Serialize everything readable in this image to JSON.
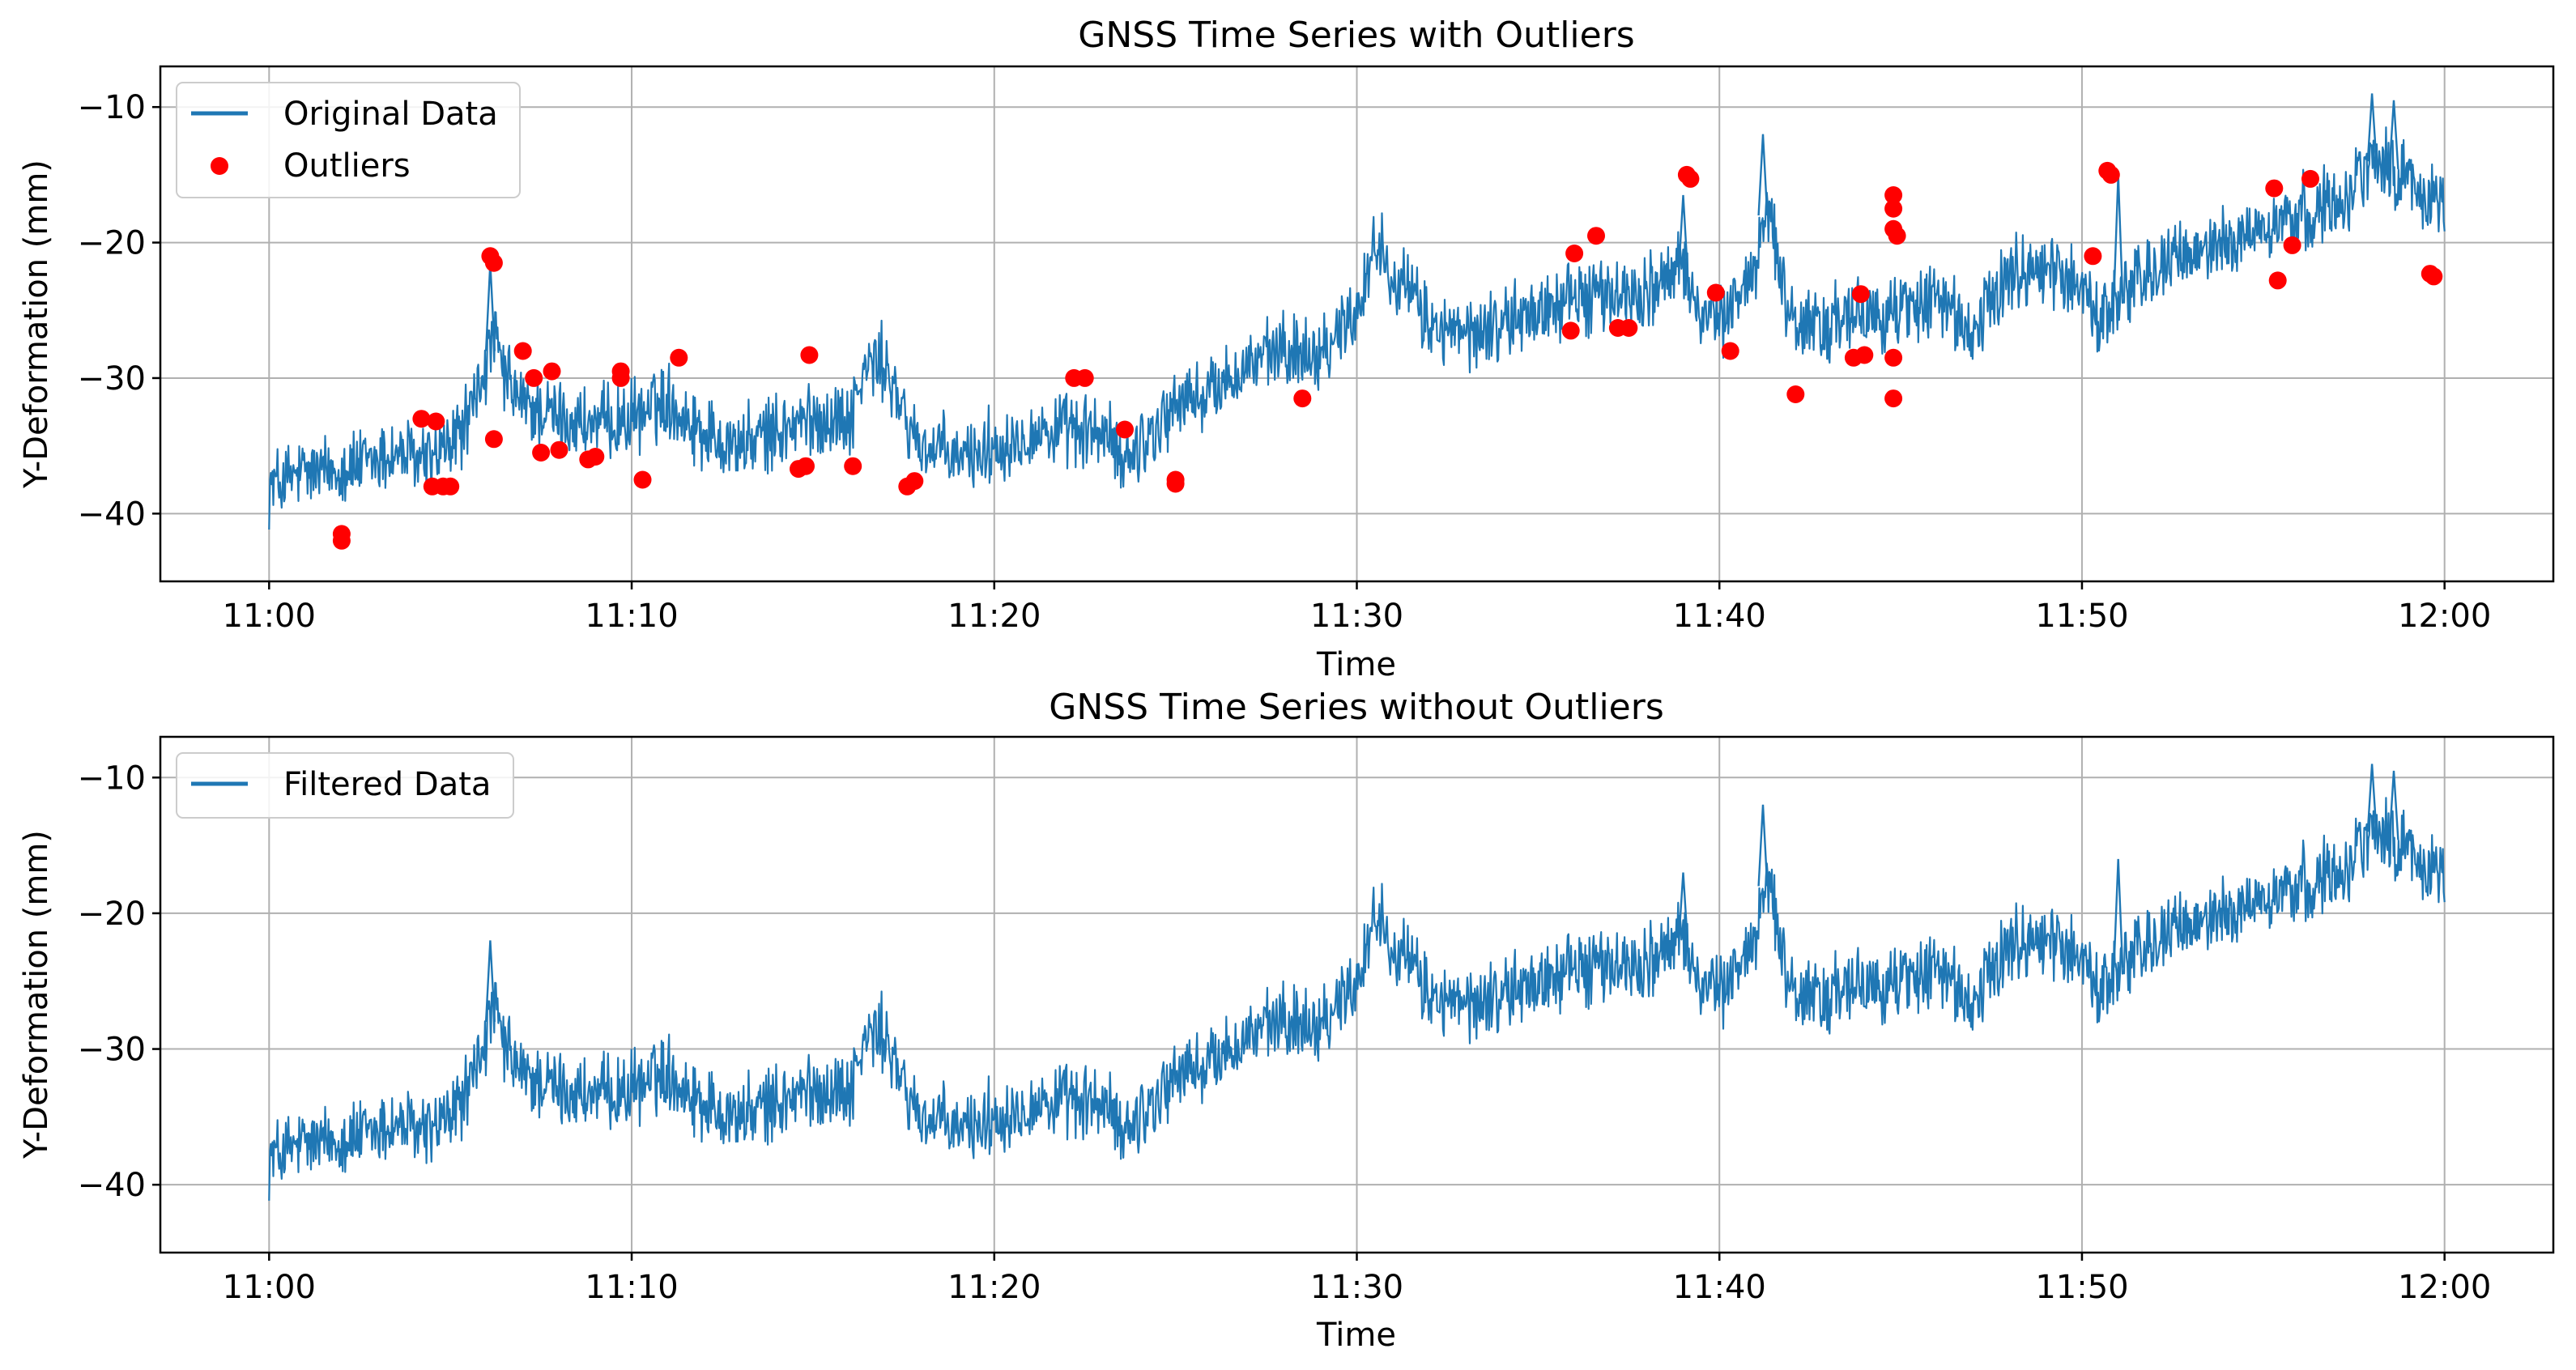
{
  "colors": {
    "series": "#1f77b4",
    "outlier": "#ff0000",
    "grid": "#b0b0b0",
    "axis": "#000000"
  },
  "chart_data": [
    {
      "type": "line",
      "title": "GNSS Time Series with  Outliers",
      "xlabel": "Time",
      "ylabel": "Y-Deformation (mm)",
      "xlim_minutes": [
        -3,
        63
      ],
      "ylim": [
        -45,
        -7
      ],
      "x_ticks": [
        {
          "label": "11:00",
          "value": 0
        },
        {
          "label": "11:10",
          "value": 10
        },
        {
          "label": "11:20",
          "value": 20
        },
        {
          "label": "11:30",
          "value": 30
        },
        {
          "label": "11:40",
          "value": 40
        },
        {
          "label": "11:50",
          "value": 50
        },
        {
          "label": "12:00",
          "value": 60
        }
      ],
      "y_ticks": [
        {
          "label": "−10",
          "value": -10
        },
        {
          "label": "−20",
          "value": -20
        },
        {
          "label": "−30",
          "value": -30
        },
        {
          "label": "−40",
          "value": -40
        }
      ],
      "grid": true,
      "legend_position": "top-left",
      "legend": [
        {
          "label": "Original Data",
          "kind": "line",
          "color": "#1f77b4"
        },
        {
          "label": "Outliers",
          "kind": "marker",
          "color": "#ff0000"
        }
      ],
      "series": [
        {
          "name": "Original Data",
          "color": "#1f77b4",
          "noise_mm": 2.2,
          "trend": [
            [
              0,
              -38
            ],
            [
              0.5,
              -37.5
            ],
            [
              1,
              -37
            ],
            [
              1.5,
              -37
            ],
            [
              2,
              -36.5
            ],
            [
              2.5,
              -36.5
            ],
            [
              3,
              -36
            ],
            [
              3.5,
              -35.5
            ],
            [
              4,
              -36
            ],
            [
              4.5,
              -36
            ],
            [
              5,
              -35
            ],
            [
              5.5,
              -33
            ],
            [
              6,
              -29
            ],
            [
              6.2,
              -27
            ],
            [
              6.5,
              -30
            ],
            [
              7,
              -32
            ],
            [
              8,
              -33
            ],
            [
              9,
              -33.5
            ],
            [
              10,
              -33
            ],
            [
              11,
              -31.5
            ],
            [
              11.5,
              -33
            ],
            [
              12,
              -34
            ],
            [
              13,
              -35
            ],
            [
              14,
              -34
            ],
            [
              15,
              -33
            ],
            [
              16,
              -33
            ],
            [
              16.5,
              -29
            ],
            [
              17,
              -29
            ],
            [
              17.5,
              -33
            ],
            [
              18,
              -35
            ],
            [
              19,
              -36
            ],
            [
              20,
              -35
            ],
            [
              21,
              -34
            ],
            [
              22,
              -34
            ],
            [
              23,
              -34
            ],
            [
              23.5,
              -36
            ],
            [
              24,
              -35
            ],
            [
              25,
              -32
            ],
            [
              26,
              -31
            ],
            [
              27,
              -29
            ],
            [
              28,
              -28
            ],
            [
              29,
              -28
            ],
            [
              30,
              -25
            ],
            [
              30.5,
              -20
            ],
            [
              31,
              -22
            ],
            [
              32,
              -26
            ],
            [
              33,
              -27
            ],
            [
              34,
              -26
            ],
            [
              35,
              -25
            ],
            [
              36,
              -24
            ],
            [
              37,
              -24
            ],
            [
              38,
              -23.5
            ],
            [
              39,
              -22
            ],
            [
              39.5,
              -25
            ],
            [
              40,
              -26
            ],
            [
              41,
              -22
            ],
            [
              41.3,
              -16
            ],
            [
              41.7,
              -23
            ],
            [
              42,
              -26
            ],
            [
              43,
              -26
            ],
            [
              44,
              -25.5
            ],
            [
              45,
              -25
            ],
            [
              46,
              -24
            ],
            [
              47,
              -27
            ],
            [
              48,
              -22
            ],
            [
              49,
              -22
            ],
            [
              50,
              -23
            ],
            [
              50.5,
              -26
            ],
            [
              51,
              -24
            ],
            [
              51.5,
              -23
            ],
            [
              52,
              -22
            ],
            [
              53,
              -21
            ],
            [
              54,
              -20
            ],
            [
              55,
              -19
            ],
            [
              56,
              -18
            ],
            [
              57,
              -17
            ],
            [
              58,
              -14
            ],
            [
              59,
              -15
            ],
            [
              59.5,
              -17
            ],
            [
              60,
              -17
            ]
          ],
          "spikes": [
            [
              6.1,
              -21.5
            ],
            [
              39.0,
              -16.5
            ],
            [
              41.2,
              -12.0
            ],
            [
              51.0,
              -15.0
            ],
            [
              58.0,
              -9.0
            ],
            [
              58.6,
              -9.5
            ]
          ]
        },
        {
          "name": "Outliers",
          "color": "#ff0000",
          "points": [
            [
              2.0,
              -42
            ],
            [
              2.0,
              -41.5
            ],
            [
              4.2,
              -33
            ],
            [
              4.6,
              -33.2
            ],
            [
              4.5,
              -38
            ],
            [
              4.8,
              -38
            ],
            [
              5.0,
              -38
            ],
            [
              6.1,
              -21
            ],
            [
              6.2,
              -21.5
            ],
            [
              6.2,
              -34.5
            ],
            [
              7.0,
              -28
            ],
            [
              7.3,
              -30
            ],
            [
              7.5,
              -35.5
            ],
            [
              7.8,
              -29.5
            ],
            [
              8.0,
              -35.3
            ],
            [
              8.8,
              -36
            ],
            [
              9.0,
              -35.8
            ],
            [
              9.7,
              -29.5
            ],
            [
              9.7,
              -30
            ],
            [
              10.3,
              -37.5
            ],
            [
              11.3,
              -28.5
            ],
            [
              14.6,
              -36.7
            ],
            [
              14.8,
              -36.5
            ],
            [
              14.9,
              -28.3
            ],
            [
              16.1,
              -36.5
            ],
            [
              17.6,
              -38
            ],
            [
              17.8,
              -37.6
            ],
            [
              22.2,
              -30
            ],
            [
              22.5,
              -30
            ],
            [
              23.6,
              -33.8
            ],
            [
              25.0,
              -37.5
            ],
            [
              25.0,
              -37.8
            ],
            [
              28.5,
              -31.5
            ],
            [
              35.9,
              -26.5
            ],
            [
              36.0,
              -20.8
            ],
            [
              36.6,
              -19.5
            ],
            [
              37.2,
              -26.3
            ],
            [
              37.5,
              -26.3
            ],
            [
              39.1,
              -15
            ],
            [
              39.2,
              -15.3
            ],
            [
              39.9,
              -23.7
            ],
            [
              40.3,
              -28
            ],
            [
              42.1,
              -31.2
            ],
            [
              43.7,
              -28.5
            ],
            [
              43.9,
              -23.8
            ],
            [
              44.0,
              -28.3
            ],
            [
              44.8,
              -16.5
            ],
            [
              44.8,
              -17.5
            ],
            [
              44.8,
              -19
            ],
            [
              44.9,
              -19.5
            ],
            [
              44.8,
              -31.5
            ],
            [
              44.8,
              -28.5
            ],
            [
              50.3,
              -21
            ],
            [
              50.7,
              -14.7
            ],
            [
              50.8,
              -15
            ],
            [
              55.3,
              -16
            ],
            [
              55.4,
              -22.8
            ],
            [
              55.8,
              -20.2
            ],
            [
              56.3,
              -15.3
            ],
            [
              59.6,
              -22.3
            ],
            [
              59.7,
              -22.5
            ]
          ]
        }
      ]
    },
    {
      "type": "line",
      "title": "GNSS Time Series without Outliers",
      "xlabel": "Time",
      "ylabel": "Y-Deformation (mm)",
      "xlim_minutes": [
        -3,
        63
      ],
      "ylim": [
        -45,
        -7
      ],
      "x_ticks": [
        {
          "label": "11:00",
          "value": 0
        },
        {
          "label": "11:10",
          "value": 10
        },
        {
          "label": "11:20",
          "value": 20
        },
        {
          "label": "11:30",
          "value": 30
        },
        {
          "label": "11:40",
          "value": 40
        },
        {
          "label": "11:50",
          "value": 50
        },
        {
          "label": "12:00",
          "value": 60
        }
      ],
      "y_ticks": [
        {
          "label": "−10",
          "value": -10
        },
        {
          "label": "−20",
          "value": -20
        },
        {
          "label": "−30",
          "value": -30
        },
        {
          "label": "−40",
          "value": -40
        }
      ],
      "grid": true,
      "legend_position": "top-left",
      "legend": [
        {
          "label": "Filtered Data",
          "kind": "line",
          "color": "#1f77b4"
        }
      ],
      "series": [
        {
          "name": "Filtered Data",
          "color": "#1f77b4",
          "noise_mm": 2.2,
          "trend": [
            [
              0,
              -38
            ],
            [
              0.5,
              -37.5
            ],
            [
              1,
              -37
            ],
            [
              1.5,
              -37
            ],
            [
              2,
              -36.5
            ],
            [
              2.5,
              -36.5
            ],
            [
              3,
              -36
            ],
            [
              3.5,
              -35.5
            ],
            [
              4,
              -36
            ],
            [
              4.5,
              -36
            ],
            [
              5,
              -35
            ],
            [
              5.5,
              -33
            ],
            [
              6,
              -29
            ],
            [
              6.2,
              -27
            ],
            [
              6.5,
              -30
            ],
            [
              7,
              -32
            ],
            [
              8,
              -33
            ],
            [
              9,
              -33.5
            ],
            [
              10,
              -33
            ],
            [
              11,
              -31.5
            ],
            [
              11.5,
              -33
            ],
            [
              12,
              -34
            ],
            [
              13,
              -35
            ],
            [
              14,
              -34
            ],
            [
              15,
              -33
            ],
            [
              16,
              -33
            ],
            [
              16.5,
              -29
            ],
            [
              17,
              -29
            ],
            [
              17.5,
              -33
            ],
            [
              18,
              -35
            ],
            [
              19,
              -36
            ],
            [
              20,
              -35
            ],
            [
              21,
              -34
            ],
            [
              22,
              -34
            ],
            [
              23,
              -34
            ],
            [
              23.5,
              -36
            ],
            [
              24,
              -35
            ],
            [
              25,
              -32
            ],
            [
              26,
              -31
            ],
            [
              27,
              -29
            ],
            [
              28,
              -28
            ],
            [
              29,
              -28
            ],
            [
              30,
              -25
            ],
            [
              30.5,
              -20
            ],
            [
              31,
              -22
            ],
            [
              32,
              -26
            ],
            [
              33,
              -27
            ],
            [
              34,
              -26
            ],
            [
              35,
              -25
            ],
            [
              36,
              -24
            ],
            [
              37,
              -24
            ],
            [
              38,
              -23.5
            ],
            [
              39,
              -22
            ],
            [
              39.5,
              -25
            ],
            [
              40,
              -26
            ],
            [
              41,
              -22
            ],
            [
              41.3,
              -16
            ],
            [
              41.7,
              -23
            ],
            [
              42,
              -26
            ],
            [
              43,
              -26
            ],
            [
              44,
              -25.5
            ],
            [
              45,
              -25
            ],
            [
              46,
              -24
            ],
            [
              47,
              -27
            ],
            [
              48,
              -22
            ],
            [
              49,
              -22
            ],
            [
              50,
              -23
            ],
            [
              50.5,
              -26
            ],
            [
              51,
              -24
            ],
            [
              51.5,
              -23
            ],
            [
              52,
              -22
            ],
            [
              53,
              -21
            ],
            [
              54,
              -20
            ],
            [
              55,
              -19
            ],
            [
              56,
              -18
            ],
            [
              57,
              -17
            ],
            [
              58,
              -14
            ],
            [
              59,
              -15
            ],
            [
              59.5,
              -17
            ],
            [
              60,
              -17
            ]
          ],
          "spikes": [
            [
              6.1,
              -22.0
            ],
            [
              39.0,
              -17.0
            ],
            [
              41.2,
              -12.0
            ],
            [
              51.0,
              -16.0
            ],
            [
              58.0,
              -9.0
            ],
            [
              58.6,
              -9.5
            ]
          ]
        }
      ]
    }
  ]
}
